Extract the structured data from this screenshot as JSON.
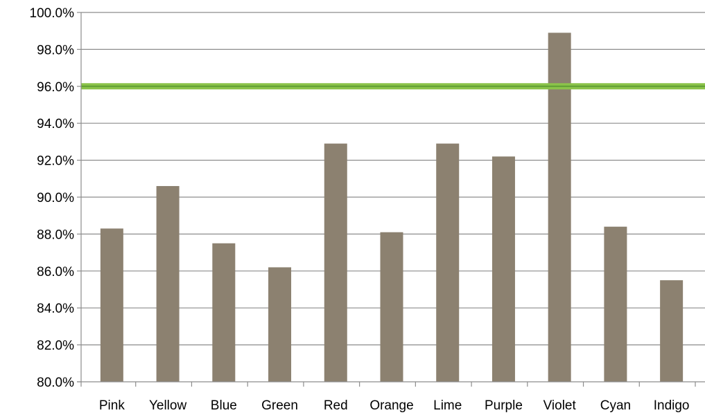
{
  "colors": {
    "bar": "#8c8170",
    "target_line": "#8bc34a",
    "target_line_core": "#5f9e35",
    "grid": "#8c8c8c",
    "axis": "#8c8c8c",
    "text": "#000000",
    "background": "#ffffff"
  },
  "chart_data": {
    "type": "bar",
    "title": "",
    "xlabel": "",
    "ylabel": "",
    "categories": [
      "Pink",
      "Yellow",
      "Blue",
      "Green",
      "Red",
      "Orange",
      "Lime",
      "Purple",
      "Violet",
      "Cyan",
      "Indigo"
    ],
    "values": [
      88.3,
      90.6,
      87.5,
      86.2,
      92.9,
      88.1,
      92.9,
      92.2,
      98.9,
      88.4,
      85.5
    ],
    "value_format": "percent_1dp",
    "ylim": [
      80,
      100
    ],
    "y_ticks": [
      80,
      82,
      84,
      86,
      88,
      90,
      92,
      94,
      96,
      98,
      100
    ],
    "y_tick_labels": [
      "80.0%",
      "82.0%",
      "84.0%",
      "86.0%",
      "88.0%",
      "90.0%",
      "92.0%",
      "94.0%",
      "96.0%",
      "98.0%",
      "100.0%"
    ],
    "grid": true,
    "legend": "none",
    "target_line": 96.0
  }
}
